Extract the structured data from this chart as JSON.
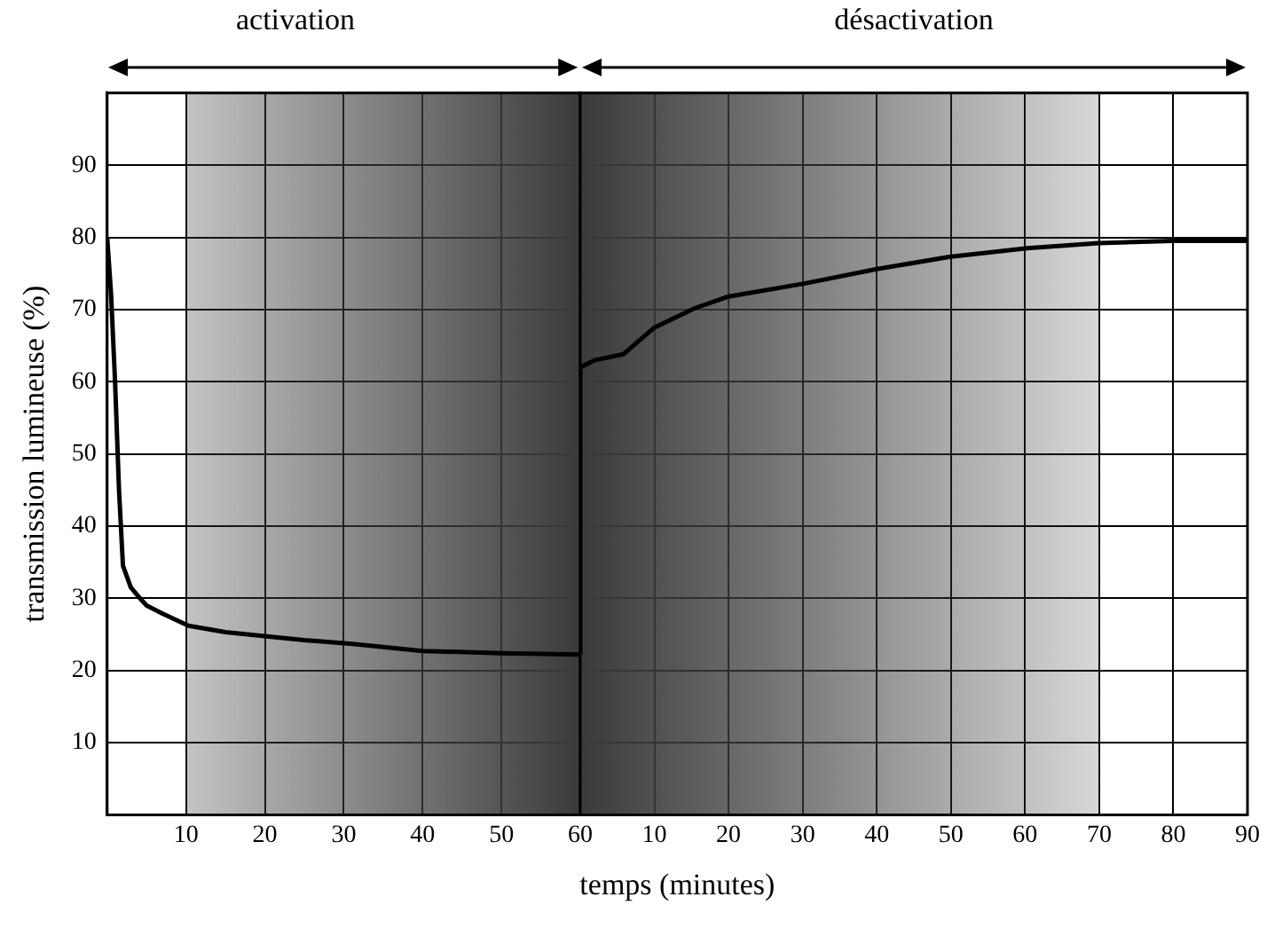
{
  "chart_data": [
    {
      "type": "line",
      "title": "activation",
      "ylabel": "transmission lumineuse (%)",
      "x": [
        0,
        0.5,
        1,
        1.5,
        2,
        3,
        4,
        5,
        7,
        10.3,
        15,
        20.5,
        25,
        30.8,
        40,
        50,
        60
      ],
      "series": [
        {
          "color": "#000000",
          "values": [
            80,
            72,
            60,
            45,
            34.5,
            31.5,
            30.2,
            29,
            27.9,
            26.2,
            25.3,
            24.7,
            24.2,
            23.7,
            22.7,
            22.4,
            22.2
          ]
        }
      ],
      "xlim": [
        0,
        60
      ],
      "xticks": [
        10,
        20,
        30,
        40,
        50,
        60
      ],
      "bands": [
        {
          "axis": "x",
          "from": 10,
          "to": 60,
          "color": "#3a3a3a"
        }
      ],
      "ylim": [
        0,
        100
      ],
      "yticks": [
        10,
        20,
        30,
        40,
        50,
        60,
        70,
        80,
        90
      ],
      "grid": true,
      "legend": false,
      "marker": "none",
      "line_style": "solid"
    },
    {
      "type": "line",
      "title": "désactivation",
      "xlabel": "temps (minutes)",
      "x": [
        0,
        0,
        2,
        5.8,
        10,
        15.5,
        20,
        30.2,
        40,
        49.8,
        60.3,
        70,
        80,
        90
      ],
      "series": [
        {
          "color": "#000000",
          "values": [
            22.2,
            62,
            63,
            63.8,
            67.5,
            70.2,
            71.8,
            73.6,
            75.6,
            77.3,
            78.5,
            79.2,
            79.5,
            79.5
          ]
        }
      ],
      "xlim": [
        0,
        90
      ],
      "xticks": [
        10,
        20,
        30,
        40,
        50,
        60,
        70,
        80,
        90
      ],
      "bands": [
        {
          "axis": "x",
          "from": 0,
          "to": 70,
          "color": "#3a3a3a"
        }
      ],
      "ylim": [
        0,
        100
      ],
      "yticks": [
        10,
        20,
        30,
        40,
        50,
        60,
        70,
        80,
        90
      ],
      "tick_labels": "x",
      "grid": true,
      "legend": false,
      "marker": "none",
      "line_style": "solid"
    }
  ]
}
